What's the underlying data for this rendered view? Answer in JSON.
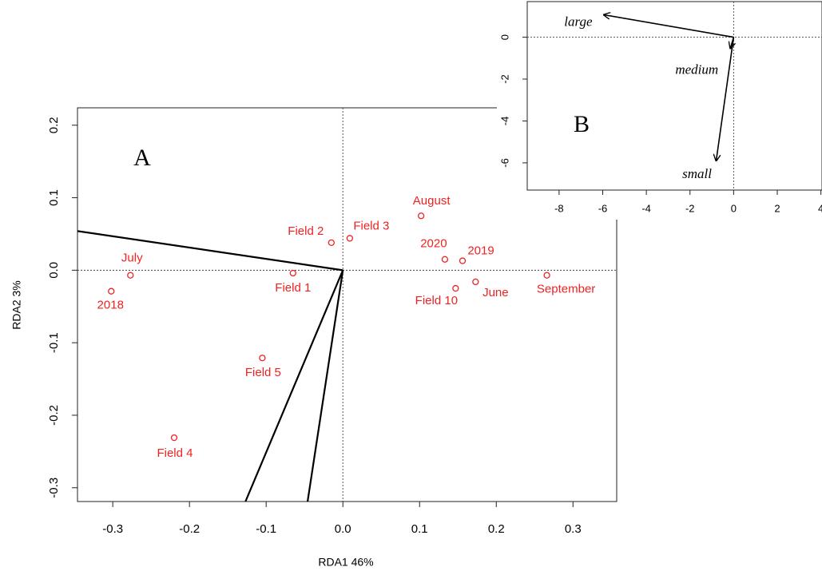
{
  "chart_data": [
    {
      "type": "scatter",
      "annotation": "A",
      "xlabel": "RDA1 46%",
      "ylabel": "RDA2  3%",
      "xlim": [
        -0.346,
        0.357
      ],
      "ylim": [
        -0.319,
        0.224
      ],
      "xticks": [
        -0.3,
        -0.2,
        -0.1,
        {
          "value": 0,
          "label": "0.0"
        },
        0.1,
        0.2,
        0.3
      ],
      "yticks": [
        -0.3,
        -0.2,
        -0.1,
        {
          "value": 0,
          "label": "0.0"
        },
        0.1,
        0.2
      ],
      "color": "#ee2222",
      "labels": [
        "July",
        "2018",
        "Field 1",
        "Field 2",
        "Field 3",
        "August",
        "2020",
        "2019",
        "Field 10",
        "June",
        "September",
        "Field 5",
        "Field 4"
      ],
      "x": [
        -0.277,
        -0.302,
        -0.065,
        -0.015,
        0.009,
        0.102,
        0.133,
        0.156,
        0.147,
        0.173,
        0.266,
        -0.105,
        -0.22
      ],
      "y": [
        -0.007,
        -0.029,
        -0.004,
        0.038,
        0.044,
        0.075,
        0.015,
        0.013,
        -0.025,
        -0.016,
        -0.007,
        -0.121,
        -0.231
      ],
      "vectors": {
        "x": [
          -0.346,
          -0.127,
          -0.046
        ],
        "y": [
          0.054,
          -0.319,
          -0.319
        ]
      },
      "vector_color": "#000000"
    },
    {
      "type": "arrows",
      "annotation": "B",
      "xlim": [
        -9.46,
        4.05
      ],
      "ylim": [
        -7.3,
        1.7
      ],
      "xticks": [
        -8,
        -6,
        -4,
        -2,
        0,
        2,
        4
      ],
      "yticks": [
        -6,
        -4,
        -2,
        0
      ],
      "color": "#000000",
      "labels": [
        "large",
        "medium",
        "small"
      ],
      "x": [
        -5.95,
        -0.15,
        -0.8
      ],
      "y": [
        1.07,
        -0.53,
        -5.9
      ]
    }
  ]
}
